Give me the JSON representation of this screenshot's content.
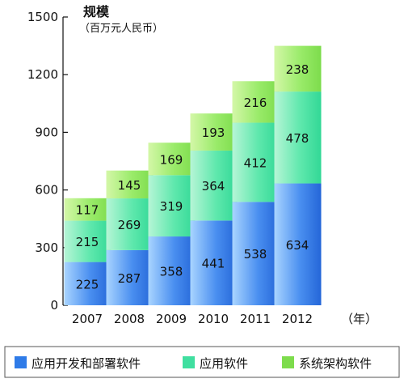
{
  "chart_data": {
    "type": "bar",
    "stacked": true,
    "categories": [
      "2007",
      "2008",
      "2009",
      "2010",
      "2011",
      "2012"
    ],
    "x_unit": "（年）",
    "ylabel": "规模",
    "ylabel_unit": "（百万元人民币）",
    "ylim": [
      0,
      1500
    ],
    "yticks": [
      0,
      300,
      600,
      900,
      1200,
      1500
    ],
    "grid": false,
    "legend_position": "bottom",
    "series": [
      {
        "name": "系统架构软件",
        "values": [
          225,
          287,
          358,
          441,
          538,
          634
        ],
        "color": "#2f7be8"
      },
      {
        "name": "应用软件",
        "values": [
          215,
          269,
          319,
          364,
          412,
          478
        ],
        "color": "#48e6a8"
      },
      {
        "name": "应用开发和部署软件",
        "values": [
          117,
          145,
          169,
          193,
          216,
          238
        ],
        "color": "#8ee85c"
      }
    ],
    "legend_order": [
      2,
      1,
      0
    ]
  }
}
